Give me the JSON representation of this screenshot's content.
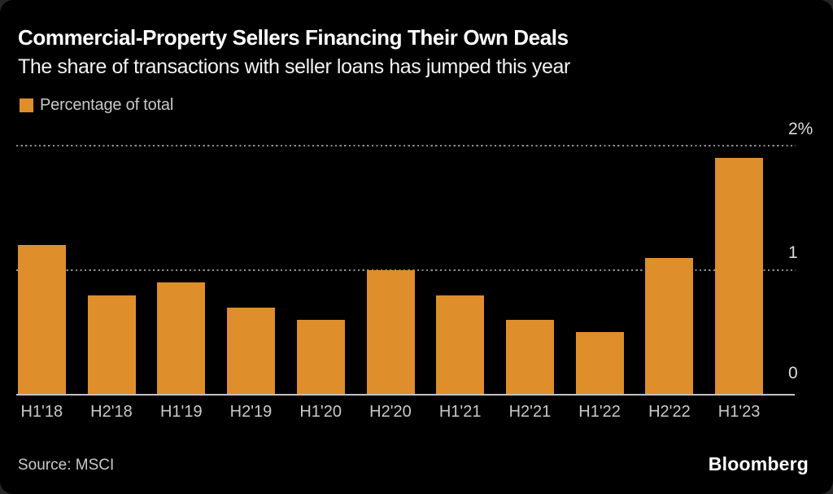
{
  "header": {
    "title": "Commercial-Property Sellers Financing Their Own Deals",
    "subtitle": "The share of transactions with seller loans has jumped this year"
  },
  "legend": {
    "label": "Percentage of total",
    "swatch_color": "#de8e2a"
  },
  "footer": {
    "source": "Source: MSCI",
    "brand": "Bloomberg"
  },
  "chart_data": {
    "type": "bar",
    "title": "Commercial-Property Sellers Financing Their Own Deals",
    "subtitle": "The share of transactions with seller loans has jumped this year",
    "series_name": "Percentage of total",
    "categories": [
      "H1'18",
      "H2'18",
      "H1'19",
      "H2'19",
      "H1'20",
      "H2'20",
      "H1'21",
      "H2'21",
      "H1'22",
      "H2'22",
      "H1'23"
    ],
    "values": [
      1.2,
      0.8,
      0.9,
      0.7,
      0.6,
      1.0,
      0.8,
      0.6,
      0.5,
      1.1,
      1.9
    ],
    "xlabel": "",
    "ylabel": "Percentage of total",
    "ylim": [
      0,
      2
    ],
    "yticks": [
      {
        "label": "2%",
        "value": 2
      },
      {
        "label": "1",
        "value": 1
      },
      {
        "label": "0",
        "value": 0
      }
    ],
    "grid": "horizontal-dotted",
    "legend_position": "top-left",
    "bar_color": "#de8e2a",
    "background_color": "#000000"
  }
}
